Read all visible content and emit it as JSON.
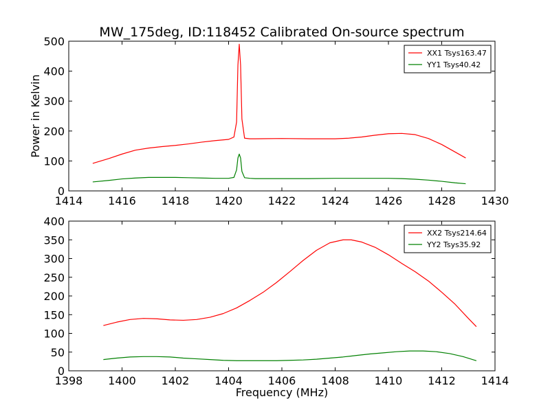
{
  "title": "MW_175deg, ID:118452 Calibrated On-source spectrum",
  "chart_data": [
    {
      "type": "line",
      "xlabel": "",
      "ylabel": "Power in Kelvin",
      "xlim": [
        1414,
        1430
      ],
      "ylim": [
        0,
        500
      ],
      "xticks": [
        1414,
        1416,
        1418,
        1420,
        1422,
        1424,
        1426,
        1428,
        1430
      ],
      "yticks": [
        0,
        100,
        200,
        300,
        400,
        500
      ],
      "legend": "top-right",
      "series": [
        {
          "name": "XX1 Tsys163.47",
          "color": "#ff0000",
          "x": [
            1414.9,
            1415.5,
            1416,
            1416.5,
            1417,
            1417.5,
            1418,
            1418.5,
            1419,
            1419.5,
            1420.0,
            1420.2,
            1420.3,
            1420.35,
            1420.4,
            1420.45,
            1420.5,
            1420.6,
            1420.8,
            1421,
            1422,
            1423,
            1424,
            1424.5,
            1425,
            1425.5,
            1426,
            1426.5,
            1427,
            1427.5,
            1428,
            1428.5,
            1428.9
          ],
          "y": [
            92,
            108,
            123,
            136,
            143,
            148,
            152,
            157,
            163,
            168,
            172,
            180,
            230,
            420,
            490,
            420,
            240,
            176,
            174,
            174,
            175,
            174,
            174,
            176,
            180,
            186,
            191,
            192,
            188,
            175,
            155,
            130,
            110
          ]
        },
        {
          "name": "YY1 Tsys40.42",
          "color": "#008000",
          "x": [
            1414.9,
            1415.5,
            1416,
            1416.5,
            1417,
            1417.5,
            1418,
            1418.5,
            1419,
            1419.5,
            1420.0,
            1420.2,
            1420.3,
            1420.35,
            1420.4,
            1420.45,
            1420.5,
            1420.6,
            1420.8,
            1421,
            1422,
            1423,
            1424,
            1425,
            1426,
            1426.5,
            1427,
            1427.5,
            1428,
            1428.5,
            1428.9
          ],
          "y": [
            30,
            35,
            40,
            43,
            45,
            45,
            45,
            44,
            43,
            42,
            42,
            45,
            70,
            110,
            123,
            110,
            65,
            44,
            42,
            41,
            41,
            41,
            42,
            42,
            42,
            41,
            39,
            36,
            32,
            27,
            24
          ]
        }
      ]
    },
    {
      "type": "line",
      "xlabel": "Frequency (MHz)",
      "ylabel": "",
      "xlim": [
        1398,
        1414
      ],
      "ylim": [
        0,
        400
      ],
      "xticks": [
        1398,
        1400,
        1402,
        1404,
        1406,
        1408,
        1410,
        1412,
        1414
      ],
      "yticks": [
        0,
        50,
        100,
        150,
        200,
        250,
        300,
        350,
        400
      ],
      "legend": "top-right",
      "series": [
        {
          "name": "XX2 Tsys214.64",
          "color": "#ff0000",
          "x": [
            1399.3,
            1399.8,
            1400.3,
            1400.8,
            1401.3,
            1401.8,
            1402.3,
            1402.8,
            1403.3,
            1403.8,
            1404.3,
            1404.8,
            1405.3,
            1405.8,
            1406.3,
            1406.8,
            1407.3,
            1407.8,
            1408.3,
            1408.6,
            1409.0,
            1409.5,
            1410.0,
            1410.5,
            1411.0,
            1411.5,
            1412.0,
            1412.5,
            1413.0,
            1413.3
          ],
          "y": [
            121,
            130,
            137,
            140,
            139,
            136,
            135,
            137,
            143,
            153,
            168,
            188,
            210,
            236,
            265,
            295,
            322,
            342,
            350,
            350,
            344,
            330,
            310,
            287,
            265,
            240,
            210,
            178,
            140,
            118
          ]
        },
        {
          "name": "YY2 Tsys35.92",
          "color": "#008000",
          "x": [
            1399.3,
            1399.8,
            1400.3,
            1400.8,
            1401.3,
            1401.8,
            1402.3,
            1402.8,
            1403.3,
            1403.8,
            1404.3,
            1404.8,
            1405.3,
            1405.8,
            1406.3,
            1406.8,
            1407.3,
            1407.8,
            1408.3,
            1408.8,
            1409.3,
            1409.8,
            1410.3,
            1410.8,
            1411.3,
            1411.8,
            1412.3,
            1412.8,
            1413.3
          ],
          "y": [
            30,
            34,
            37,
            38,
            38,
            37,
            34,
            32,
            30,
            28,
            27,
            27,
            27,
            27,
            28,
            29,
            31,
            34,
            37,
            41,
            45,
            48,
            51,
            53,
            53,
            51,
            46,
            38,
            27
          ]
        }
      ]
    }
  ]
}
